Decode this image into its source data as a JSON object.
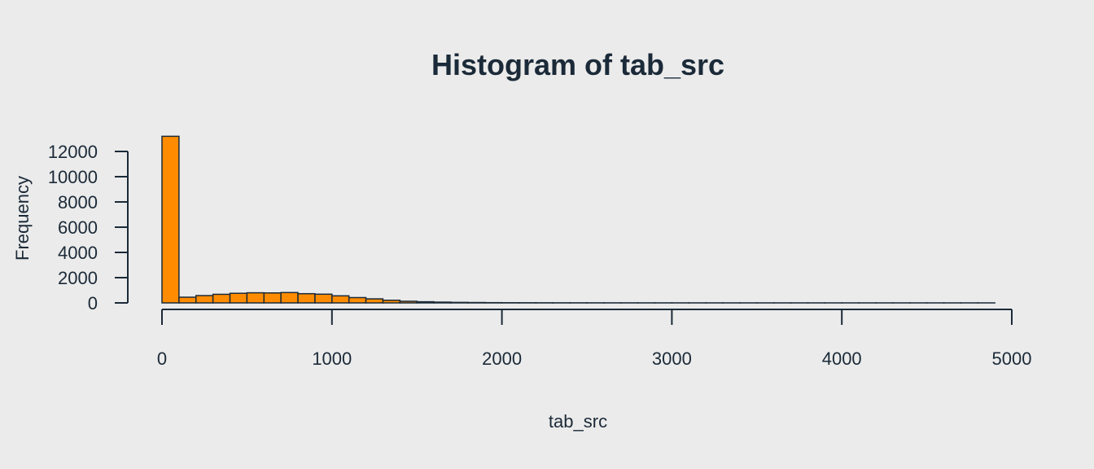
{
  "colors": {
    "background": "#ebebeb",
    "bar_fill": "#ff8c00",
    "bar_stroke": "#1b2a38",
    "text": "#1b2a38"
  },
  "chart_data": {
    "type": "bar",
    "title": "Histogram of tab_src",
    "xlabel": "tab_src",
    "ylabel": "Frequency",
    "bin_width": 100,
    "bin_start": 0,
    "xlim": [
      0,
      5000
    ],
    "ylim": [
      0,
      12000
    ],
    "x_ticks": [
      0,
      1000,
      2000,
      3000,
      4000,
      5000
    ],
    "y_ticks": [
      0,
      2000,
      4000,
      6000,
      8000,
      10000,
      12000
    ],
    "grid": false,
    "values": [
      13200,
      450,
      580,
      680,
      760,
      800,
      790,
      820,
      730,
      690,
      560,
      420,
      320,
      210,
      130,
      90,
      60,
      40,
      30,
      20,
      15,
      12,
      10,
      8,
      7,
      6,
      5,
      5,
      4,
      4,
      3,
      3,
      3,
      2,
      2,
      2,
      2,
      2,
      2,
      1,
      1,
      1,
      1,
      1,
      1,
      1,
      1,
      1,
      1
    ]
  }
}
